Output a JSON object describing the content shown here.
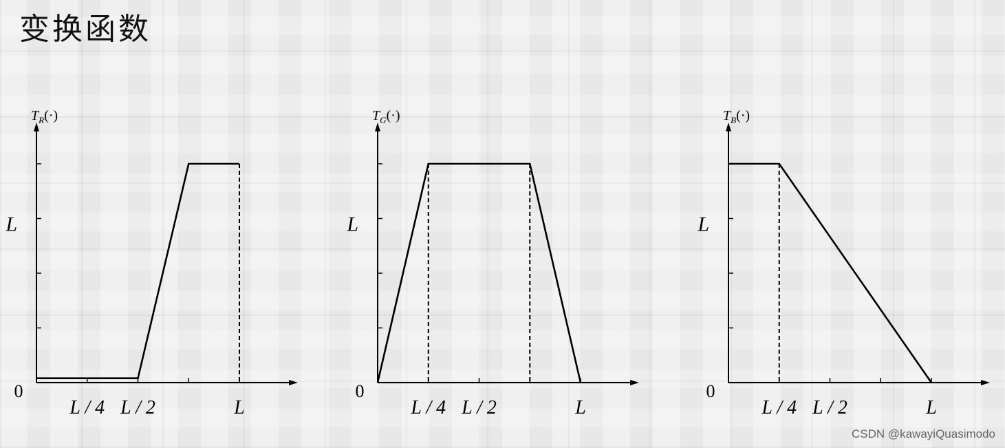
{
  "page": {
    "title": "变换函数",
    "watermark": "CSDN @kawayiQuasimodo"
  },
  "chart_data": [
    {
      "type": "line",
      "ylabel": "T_R(·)",
      "ylabel_main": "T",
      "ylabel_sub": "R",
      "ylabel_arg": "(·)",
      "origin_label": "0",
      "xlim": [
        0,
        1.25
      ],
      "ylim": [
        0,
        1.45
      ],
      "y_tick_values": [
        0.25,
        0.5,
        0.75,
        1.0
      ],
      "y_labels": [
        {
          "value": 0.75,
          "text": "L"
        }
      ],
      "x_tick_values": [
        0.25,
        0.5,
        0.75,
        1.0
      ],
      "x_labels": [
        {
          "value": 0.25,
          "text": "L / 4"
        },
        {
          "value": 0.5,
          "text": "L / 2"
        },
        {
          "value": 1.0,
          "text": "L"
        }
      ],
      "series": [
        {
          "x": [
            0,
            0.5,
            0.75,
            1.0
          ],
          "y": [
            0.02,
            0.02,
            1.0,
            1.0
          ]
        }
      ],
      "dashed_verticals": [
        {
          "x": 1.0,
          "y": 1.0
        }
      ]
    },
    {
      "type": "line",
      "ylabel": "T_G(·)",
      "ylabel_main": "T",
      "ylabel_sub": "G",
      "ylabel_arg": "(·)",
      "origin_label": "0",
      "xlim": [
        0,
        1.25
      ],
      "ylim": [
        0,
        1.45
      ],
      "y_tick_values": [
        0.25,
        0.5,
        0.75,
        1.0
      ],
      "y_labels": [
        {
          "value": 0.75,
          "text": "L"
        }
      ],
      "x_tick_values": [
        0.25,
        0.5,
        0.75,
        1.0
      ],
      "x_labels": [
        {
          "value": 0.25,
          "text": "L / 4"
        },
        {
          "value": 0.5,
          "text": "L / 2"
        },
        {
          "value": 1.0,
          "text": "L"
        }
      ],
      "series": [
        {
          "x": [
            0,
            0.25,
            0.75,
            1.0
          ],
          "y": [
            0,
            1.0,
            1.0,
            0
          ]
        }
      ],
      "dashed_verticals": [
        {
          "x": 0.25,
          "y": 1.0
        },
        {
          "x": 0.75,
          "y": 1.0
        }
      ]
    },
    {
      "type": "line",
      "ylabel": "T_B(·)",
      "ylabel_main": "T",
      "ylabel_sub": "B",
      "ylabel_arg": "(·)",
      "origin_label": "0",
      "xlim": [
        0,
        1.25
      ],
      "ylim": [
        0,
        1.45
      ],
      "y_tick_values": [
        0.25,
        0.5,
        0.75,
        1.0
      ],
      "y_labels": [
        {
          "value": 0.75,
          "text": "L"
        }
      ],
      "x_tick_values": [
        0.25,
        0.5,
        0.75,
        1.0
      ],
      "x_labels": [
        {
          "value": 0.25,
          "text": "L / 4"
        },
        {
          "value": 0.5,
          "text": "L / 2"
        },
        {
          "value": 1.0,
          "text": "L"
        }
      ],
      "series": [
        {
          "x": [
            0,
            0.25,
            1.0
          ],
          "y": [
            1.0,
            1.0,
            0
          ]
        }
      ],
      "dashed_verticals": [
        {
          "x": 0.25,
          "y": 1.0
        }
      ]
    }
  ]
}
